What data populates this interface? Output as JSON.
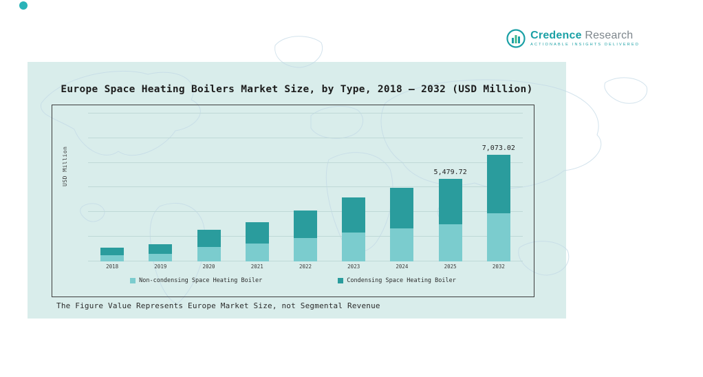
{
  "logo": {
    "brand_primary": "Credence",
    "brand_secondary": " Research",
    "tagline": "Actionable Insights Delivered",
    "accent_color": "#1aa0a5"
  },
  "panel": {
    "background": "#d9edeb"
  },
  "footnote": "The Figure Value Represents Europe Market Size, not Segmental Revenue",
  "chart_data": {
    "type": "bar",
    "stacked": true,
    "title": "Europe Space Heating Boilers Market Size, by Type, 2018 – 2032 (USD Million)",
    "ylabel": "USD Million",
    "xlabel": "",
    "categories": [
      "2018",
      "2019",
      "2020",
      "2021",
      "2022",
      "2023",
      "2024",
      "2025",
      "2032"
    ],
    "series": [
      {
        "name": "Non-condensing Space Heating Boiler",
        "color": "#7bccce",
        "values": [
          420,
          520,
          960,
          1190,
          1530,
          1910,
          2190,
          2470,
          3180
        ]
      },
      {
        "name": "Condensing Space Heating Boiler",
        "color": "#2a9c9d",
        "values": [
          510,
          630,
          1150,
          1430,
          1850,
          2320,
          2670,
          3009.72,
          3893.02
        ]
      }
    ],
    "totals_labeled": [
      {
        "category": "2025",
        "label": "5,479.72"
      },
      {
        "category": "2032",
        "label": "7,073.02"
      }
    ],
    "ylim": [
      0,
      9800
    ],
    "grid": true,
    "legend_position": "bottom"
  }
}
